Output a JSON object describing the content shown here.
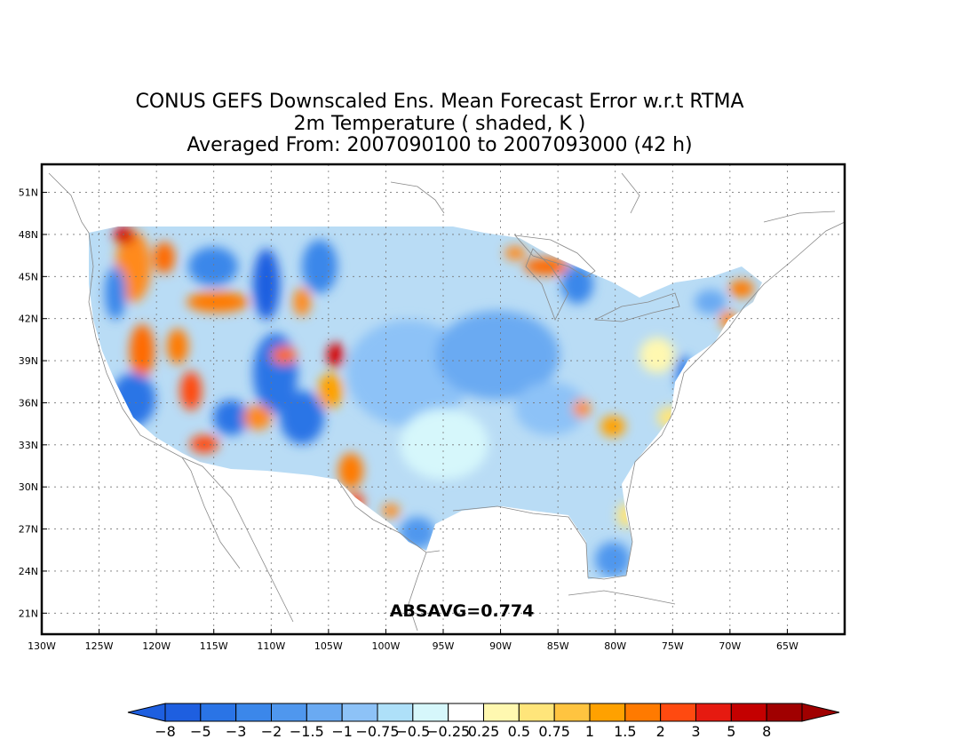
{
  "title": {
    "line1": "CONUS GEFS Downscaled Ens. Mean Forecast Error w.r.t RTMA",
    "line2": "2m Temperature ( shaded, K )",
    "line3": "Averaged From: 2007090100 to 2007093000 (42 h)"
  },
  "map": {
    "lon_range": [
      -130,
      -60
    ],
    "lat_range": [
      19.5,
      53
    ],
    "lon_ticks": [
      -130,
      -125,
      -120,
      -115,
      -110,
      -105,
      -100,
      -95,
      -90,
      -85,
      -80,
      -75,
      -70,
      -65
    ],
    "lon_tick_labels": [
      "130W",
      "125W",
      "120W",
      "115W",
      "110W",
      "105W",
      "100W",
      "95W",
      "90W",
      "85W",
      "80W",
      "75W",
      "70W",
      "65W"
    ],
    "lat_ticks": [
      21,
      24,
      27,
      30,
      33,
      36,
      39,
      42,
      45,
      48,
      51
    ],
    "lat_tick_labels": [
      "21N",
      "24N",
      "27N",
      "30N",
      "33N",
      "36N",
      "39N",
      "42N",
      "45N",
      "48N",
      "51N"
    ],
    "grid": true,
    "annotation": "ABSAVG=0.774"
  },
  "colorbar": {
    "labels": [
      "−8",
      "−5",
      "−3",
      "−2",
      "−1.5",
      "−1",
      "−0.75",
      "−0.5",
      "−0.25",
      "0.25",
      "0.5",
      "0.75",
      "1",
      "1.5",
      "2",
      "3",
      "5",
      "8"
    ],
    "colors": [
      "#1e5fe0",
      "#2a74e6",
      "#3b87ea",
      "#4f97ee",
      "#6aaaf2",
      "#8dc2f7",
      "#aee0f9",
      "#d6f7fb",
      "#ffffff",
      "#fff8b0",
      "#ffe57a",
      "#ffc440",
      "#ffa100",
      "#ff7a00",
      "#ff4a10",
      "#e61a10",
      "#c40000",
      "#a00000"
    ]
  },
  "palette": {
    "background": "#ffffff",
    "frame": "#000000",
    "coast": "#888888"
  }
}
